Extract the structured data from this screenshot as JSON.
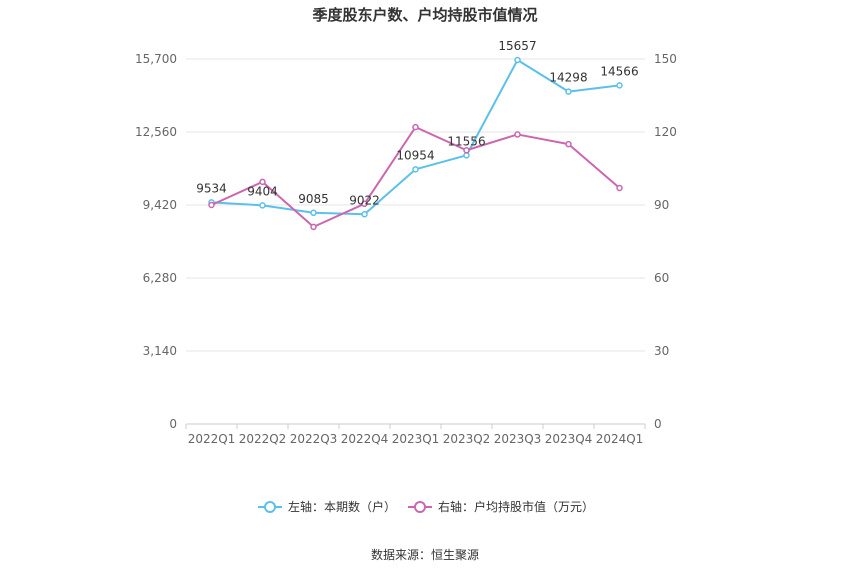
{
  "chart_data": {
    "type": "line",
    "title": "季度股东户数、户均持股市值情况",
    "categories": [
      "2022Q1",
      "2022Q2",
      "2022Q3",
      "2022Q4",
      "2023Q1",
      "2023Q2",
      "2023Q3",
      "2023Q4",
      "2024Q1"
    ],
    "left_axis": {
      "ticks": [
        "0",
        "3,140",
        "6,280",
        "9,420",
        "12,560",
        "15,700"
      ],
      "ylim": [
        0,
        15700
      ]
    },
    "right_axis": {
      "ticks": [
        "0",
        "30",
        "60",
        "90",
        "120",
        "150"
      ],
      "ylim": [
        0,
        150
      ]
    },
    "series": [
      {
        "name": "左轴：本期数（户）",
        "axis": "left",
        "color": "#5bc0eb",
        "values": [
          9534,
          9404,
          9085,
          9022,
          10954,
          11556,
          15657,
          14298,
          14566
        ],
        "labels": [
          "9534",
          "9404",
          "9085",
          "9022",
          "10954",
          "11556",
          "15657",
          "14298",
          "14566"
        ]
      },
      {
        "name": "右轴：户均持股市值（万元）",
        "axis": "right",
        "color": "#cc66b0",
        "values": [
          90,
          99.5,
          81,
          90.5,
          122,
          112.5,
          119,
          115,
          97
        ]
      }
    ],
    "grid": true,
    "legend": "bottom"
  },
  "source": "数据来源：恒生聚源"
}
